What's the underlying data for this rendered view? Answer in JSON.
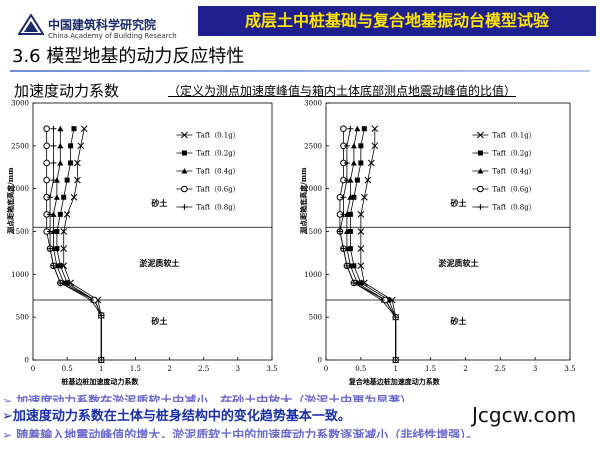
{
  "header": {
    "logo_cn": "中国建筑科学研究院",
    "logo_en": "China Academy of Building Research",
    "title": "成层土中桩基础与复合地基振动台模型试验"
  },
  "section_title": "3.6 模型地基的动力反应特性",
  "subtitle": {
    "main": "加速度动力系数",
    "note": "（定义为测点加速度峰值与箱内土体底部测点地震动峰值的比值）"
  },
  "bullets": {
    "top": "➢ 加速度动力系数在淤泥质软土中减小，在砂土中放大（淤泥土中更为显著）。",
    "middle": "➢加速度动力系数在土体与桩身结构中的变化趋势基本一致。",
    "bottom": "➢ 随着输入地震动峰值的增大，淤泥质软土中的加速度动力系数逐渐减小（非线性增强）。"
  },
  "watermark": "Jcgcw.com",
  "chart_data": [
    {
      "type": "line",
      "title": "",
      "xlabel": "桩基边桩加速度动力系数",
      "ylabel": "测点距箱底高度/mm",
      "xlim": [
        0,
        3.5
      ],
      "ylim": [
        0,
        3000
      ],
      "xticks": [
        "0",
        "0.5",
        "1",
        "1.5",
        "2",
        "2.5",
        "3",
        "3.5"
      ],
      "yticks": [
        "0",
        "500",
        "1000",
        "1500",
        "2000",
        "2500",
        "3000"
      ],
      "grid": false,
      "legend_position": "top-right",
      "layer_lines_y": [
        1550,
        700
      ],
      "layer_labels": [
        {
          "text": "砂土",
          "x": 1.85,
          "y": 1800
        },
        {
          "text": "淤泥质软土",
          "x": 1.85,
          "y": 1100
        },
        {
          "text": "砂土",
          "x": 1.85,
          "y": 420
        }
      ],
      "series": [
        {
          "name": "Taft（0.1g）",
          "marker": "x",
          "points": [
            [
              0,
              1
            ],
            [
              520,
              1
            ],
            [
              700,
              0.95
            ],
            [
              900,
              0.55
            ],
            [
              1100,
              0.45
            ],
            [
              1300,
              0.45
            ],
            [
              1500,
              0.45
            ],
            [
              1700,
              0.5
            ],
            [
              1900,
              0.6
            ],
            [
              2100,
              0.65
            ],
            [
              2300,
              0.65
            ],
            [
              2500,
              0.7
            ],
            [
              2700,
              0.75
            ]
          ]
        },
        {
          "name": "Taft（0.2g）",
          "marker": "square",
          "points": [
            [
              0,
              1
            ],
            [
              520,
              1
            ],
            [
              700,
              0.9
            ],
            [
              900,
              0.5
            ],
            [
              1100,
              0.4
            ],
            [
              1300,
              0.35
            ],
            [
              1500,
              0.35
            ],
            [
              1700,
              0.4
            ],
            [
              1900,
              0.45
            ],
            [
              2100,
              0.5
            ],
            [
              2300,
              0.55
            ],
            [
              2500,
              0.55
            ],
            [
              2700,
              0.6
            ]
          ]
        },
        {
          "name": "Taft（0.4g）",
          "marker": "triangle",
          "points": [
            [
              0,
              1
            ],
            [
              520,
              1
            ],
            [
              700,
              0.9
            ],
            [
              900,
              0.45
            ],
            [
              1100,
              0.35
            ],
            [
              1300,
              0.3
            ],
            [
              1500,
              0.3
            ],
            [
              1700,
              0.3
            ],
            [
              1900,
              0.35
            ],
            [
              2100,
              0.35
            ],
            [
              2300,
              0.4
            ],
            [
              2500,
              0.4
            ],
            [
              2700,
              0.4
            ]
          ]
        },
        {
          "name": "Taft（0.6g）",
          "marker": "circle",
          "points": [
            [
              0,
              1
            ],
            [
              520,
              1
            ],
            [
              700,
              0.9
            ],
            [
              900,
              0.4
            ],
            [
              1100,
              0.3
            ],
            [
              1300,
              0.25
            ],
            [
              1500,
              0.2
            ],
            [
              1700,
              0.2
            ],
            [
              1900,
              0.2
            ],
            [
              2100,
              0.2
            ],
            [
              2300,
              0.2
            ],
            [
              2500,
              0.2
            ],
            [
              2700,
              0.2
            ]
          ]
        },
        {
          "name": "Taft（0.8g）",
          "marker": "plus",
          "points": [
            [
              0,
              1
            ],
            [
              520,
              1
            ],
            [
              700,
              0.85
            ],
            [
              900,
              0.4
            ],
            [
              1100,
              0.3
            ],
            [
              1300,
              0.25
            ],
            [
              1500,
              0.25
            ],
            [
              1700,
              0.25
            ],
            [
              1900,
              0.25
            ],
            [
              2100,
              0.3
            ],
            [
              2300,
              0.3
            ],
            [
              2500,
              0.3
            ],
            [
              2700,
              0.3
            ]
          ]
        }
      ]
    },
    {
      "type": "line",
      "title": "",
      "xlabel": "复合地基边桩加速度动力系数",
      "ylabel": "测点距箱底高度/mm",
      "xlim": [
        0,
        3.5
      ],
      "ylim": [
        0,
        3000
      ],
      "xticks": [
        "0",
        "0.5",
        "1",
        "1.5",
        "2",
        "2.5",
        "3",
        "3.5"
      ],
      "yticks": [
        "0",
        "500",
        "1000",
        "1500",
        "2000",
        "2500",
        "3000"
      ],
      "grid": false,
      "legend_position": "top-right",
      "layer_lines_y": [
        1550,
        700
      ],
      "layer_labels": [
        {
          "text": "砂土",
          "x": 1.9,
          "y": 1800
        },
        {
          "text": "淤泥质软土",
          "x": 1.9,
          "y": 1100
        },
        {
          "text": "砂土",
          "x": 1.9,
          "y": 420
        }
      ],
      "series": [
        {
          "name": "Taft（0.1g）",
          "marker": "x",
          "points": [
            [
              0,
              1
            ],
            [
              500,
              1
            ],
            [
              700,
              0.95
            ],
            [
              900,
              0.55
            ],
            [
              1100,
              0.5
            ],
            [
              1300,
              0.5
            ],
            [
              1500,
              0.5
            ],
            [
              1700,
              0.5
            ],
            [
              1900,
              0.55
            ],
            [
              2100,
              0.6
            ],
            [
              2300,
              0.65
            ],
            [
              2500,
              0.7
            ],
            [
              2700,
              0.7
            ]
          ]
        },
        {
          "name": "Taft（0.2g）",
          "marker": "square",
          "points": [
            [
              0,
              1
            ],
            [
              500,
              1
            ],
            [
              700,
              0.9
            ],
            [
              900,
              0.5
            ],
            [
              1100,
              0.4
            ],
            [
              1300,
              0.35
            ],
            [
              1500,
              0.35
            ],
            [
              1700,
              0.35
            ],
            [
              1900,
              0.4
            ],
            [
              2100,
              0.45
            ],
            [
              2300,
              0.5
            ],
            [
              2500,
              0.5
            ],
            [
              2700,
              0.55
            ]
          ]
        },
        {
          "name": "Taft（0.4g）",
          "marker": "triangle",
          "points": [
            [
              0,
              1
            ],
            [
              500,
              1
            ],
            [
              700,
              0.85
            ],
            [
              900,
              0.45
            ],
            [
              1100,
              0.35
            ],
            [
              1300,
              0.3
            ],
            [
              1500,
              0.3
            ],
            [
              1700,
              0.3
            ],
            [
              1900,
              0.35
            ],
            [
              2100,
              0.35
            ],
            [
              2300,
              0.4
            ],
            [
              2500,
              0.4
            ],
            [
              2700,
              0.45
            ]
          ]
        },
        {
          "name": "Taft（0.6g）",
          "marker": "circle",
          "points": [
            [
              0,
              1
            ],
            [
              500,
              1
            ],
            [
              700,
              0.85
            ],
            [
              900,
              0.4
            ],
            [
              1100,
              0.3
            ],
            [
              1300,
              0.25
            ],
            [
              1500,
              0.2
            ],
            [
              1700,
              0.2
            ],
            [
              1900,
              0.2
            ],
            [
              2100,
              0.25
            ],
            [
              2300,
              0.25
            ],
            [
              2500,
              0.25
            ],
            [
              2700,
              0.25
            ]
          ]
        },
        {
          "name": "Taft（0.8g）",
          "marker": "plus",
          "points": [
            [
              0,
              1
            ],
            [
              500,
              1
            ],
            [
              700,
              0.8
            ],
            [
              900,
              0.4
            ],
            [
              1100,
              0.3
            ],
            [
              1300,
              0.25
            ],
            [
              1500,
              0.2
            ],
            [
              1700,
              0.25
            ],
            [
              1900,
              0.25
            ],
            [
              2100,
              0.3
            ],
            [
              2300,
              0.3
            ],
            [
              2500,
              0.3
            ],
            [
              2700,
              0.35
            ]
          ]
        }
      ]
    }
  ]
}
